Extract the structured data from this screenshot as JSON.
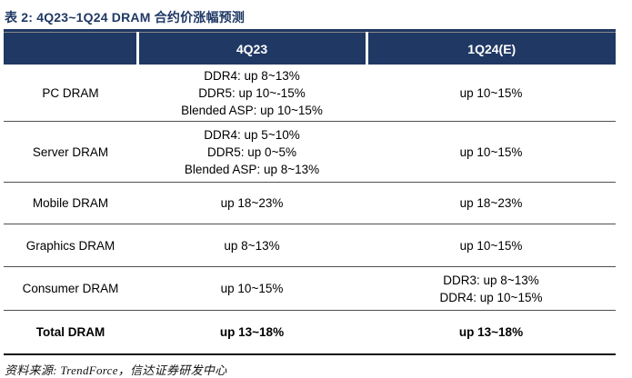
{
  "title": "表 2:  4Q23~1Q24 DRAM 合约价涨幅预测",
  "colors": {
    "header_bg": "#1F3864",
    "title_text": "#1F3864",
    "row_line": "#4f4f4f",
    "bottom_line": "#111111"
  },
  "table": {
    "columns": [
      "",
      "4Q23",
      "1Q24(E)"
    ],
    "rows": [
      {
        "label": "PC DRAM",
        "q4": [
          "DDR4: up 8~13%",
          "DDR5: up 10~-15%",
          "Blended ASP: up 10~15%"
        ],
        "q1": [
          "up 10~15%"
        ]
      },
      {
        "label": "Server DRAM",
        "q4": [
          "DDR4: up 5~10%",
          "DDR5: up 0~5%",
          "Blended ASP: up 8~13%"
        ],
        "q1": [
          "up 10~15%"
        ]
      },
      {
        "label": "Mobile DRAM",
        "q4": [
          "up 18~23%"
        ],
        "q1": [
          "up 18~23%"
        ]
      },
      {
        "label": "Graphics DRAM",
        "q4": [
          "up 8~13%"
        ],
        "q1": [
          "up 10~15%"
        ]
      },
      {
        "label": "Consumer DRAM",
        "q4": [
          "up 10~15%"
        ],
        "q1": [
          "DDR3: up 8~13%",
          "DDR4: up 10~15%"
        ]
      },
      {
        "label": "Total DRAM",
        "q4": [
          "up 13~18%"
        ],
        "q1": [
          "up 13~18%"
        ]
      }
    ]
  },
  "footer": "资料来源:  TrendForce，信达证券研发中心"
}
